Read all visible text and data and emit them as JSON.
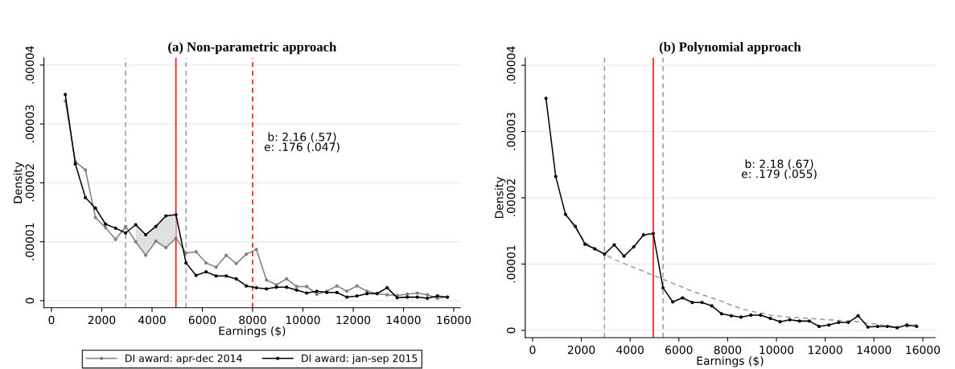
{
  "chart_data": [
    {
      "type": "line",
      "title": "(a) Non-parametric approach",
      "xlabel": "Earnings ($)",
      "ylabel": "Density",
      "xlim": [
        -300,
        16260
      ],
      "xticks": [
        0,
        2000,
        4000,
        6000,
        8000,
        10000,
        12000,
        14000,
        16000
      ],
      "ylim": [
        -1.2e-06,
        4.12e-05
      ],
      "yticks": [
        {
          "value": 0,
          "label": "0"
        },
        {
          "value": 1e-05,
          "label": ".00001"
        },
        {
          "value": 2e-05,
          "label": ".00002"
        },
        {
          "value": 3e-05,
          "label": ".00003"
        },
        {
          "value": 4e-05,
          "label": ".00004"
        }
      ],
      "grid": "y",
      "legend": "bottom",
      "marker": "circle",
      "series": [
        {
          "name": "DI award: apr-dec 2014",
          "color": "#808080",
          "x": [
            550,
            950,
            1350,
            1750,
            2150,
            2550,
            2950,
            3350,
            3750,
            4150,
            4550,
            4950,
            5350,
            5750,
            6150,
            6550,
            6950,
            7350,
            7750,
            8150,
            8550,
            8950,
            9350,
            9750,
            10150,
            10550,
            10950,
            11350,
            11750,
            12150,
            12550,
            12950,
            13350,
            13750,
            14150,
            14550,
            14950,
            15350,
            15750
          ],
          "values": [
            3.39e-05,
            2.36e-05,
            2.22e-05,
            1.41e-05,
            1.24e-05,
            1.04e-05,
            1.26e-05,
            1e-05,
            7.7e-06,
            1.01e-05,
            9e-06,
            1.06e-05,
            8.1e-06,
            8.3e-06,
            6.4e-06,
            5.7e-06,
            7.7e-06,
            6.3e-06,
            7.9e-06,
            8.7e-06,
            3.5e-06,
            2.7e-06,
            3.7e-06,
            2.4e-06,
            2.4e-06,
            1.1e-06,
            1.6e-06,
            2.5e-06,
            1.6e-06,
            2.5e-06,
            1.6e-06,
            1.2e-06,
            1e-06,
            9e-07,
            1.1e-06,
            1.3e-06,
            1e-06,
            4e-07,
            6e-07
          ]
        },
        {
          "name": "DI award: jan-sep 2015",
          "color": "#000000",
          "x": [
            550,
            950,
            1350,
            1750,
            2150,
            2550,
            2950,
            3350,
            3750,
            4150,
            4550,
            4950,
            5350,
            5750,
            6150,
            6550,
            6950,
            7350,
            7750,
            8150,
            8550,
            8950,
            9350,
            9750,
            10150,
            10550,
            10950,
            11350,
            11750,
            12150,
            12550,
            12950,
            13350,
            13750,
            14150,
            14550,
            14950,
            15350,
            15750
          ],
          "values": [
            3.5e-05,
            2.32e-05,
            1.75e-05,
            1.57e-05,
            1.3e-05,
            1.23e-05,
            1.15e-05,
            1.29e-05,
            1.12e-05,
            1.26e-05,
            1.44e-05,
            1.46e-05,
            6.4e-06,
            4.3e-06,
            4.9e-06,
            4.2e-06,
            4.2e-06,
            3.7e-06,
            2.5e-06,
            2.2e-06,
            2e-06,
            2.3e-06,
            2.3e-06,
            1.8e-06,
            1.3e-06,
            1.6e-06,
            1.4e-06,
            1.4e-06,
            6e-07,
            8e-07,
            1.2e-06,
            1.2e-06,
            2.2e-06,
            5e-07,
            6e-07,
            6e-07,
            4e-07,
            8e-07,
            6e-07
          ],
          "lower": [
            null,
            null,
            null,
            null,
            null,
            null,
            null,
            1e-05,
            7.7e-06,
            1.01e-05,
            9e-06,
            1.06e-05,
            null,
            null,
            null,
            null,
            null,
            null,
            null,
            null,
            null,
            null,
            null,
            null,
            null,
            null,
            null,
            null,
            null,
            null,
            null,
            null,
            null,
            null,
            null,
            null,
            null,
            null,
            null
          ],
          "upper": [
            null,
            null,
            null,
            null,
            null,
            null,
            null,
            1.29e-05,
            1.12e-05,
            1.26e-05,
            1.44e-05,
            1.46e-05,
            null,
            null,
            null,
            null,
            null,
            null,
            null,
            null,
            null,
            null,
            null,
            null,
            null,
            null,
            null,
            null,
            null,
            null,
            null,
            null,
            null,
            null,
            null,
            null,
            null,
            null,
            null
          ]
        }
      ],
      "ref_lines": [
        {
          "axis": "x",
          "value": 2950,
          "color": "#999999",
          "line_style": "dashed"
        },
        {
          "axis": "x",
          "value": 4950,
          "color": "#ff0000",
          "line_style": "solid"
        },
        {
          "axis": "x",
          "value": 5350,
          "color": "#999999",
          "line_style": "dashed"
        },
        {
          "axis": "x",
          "value": 8000,
          "color": "#ff0000",
          "line_style": "dashed"
        }
      ],
      "annotations": [
        "b: 2.16 (.57)\ne: .176 (.047)"
      ]
    },
    {
      "type": "line",
      "title": "(b) Polynomial approach",
      "xlabel": "Earnings ($)",
      "ylabel": "Density",
      "xlim": [
        -300,
        16500
      ],
      "xticks": [
        0,
        2000,
        4000,
        6000,
        8000,
        10000,
        12000,
        14000,
        16000
      ],
      "ylim": [
        -1.1e-06,
        4.11e-05
      ],
      "yticks": [
        {
          "value": 0,
          "label": "0"
        },
        {
          "value": 1e-05,
          "label": ".00001"
        },
        {
          "value": 2e-05,
          "label": ".00002"
        },
        {
          "value": 3e-05,
          "label": ".00003"
        },
        {
          "value": 4e-05,
          "label": ".00004"
        }
      ],
      "grid": "y",
      "marker": "circle",
      "series": [
        {
          "color": "#999999",
          "marker": "none",
          "line_style": "dashed",
          "x": [
            1350,
            1750,
            2150,
            2550,
            2950,
            3350,
            3750,
            4150,
            4550,
            4950,
            5350,
            5750,
            6150,
            6550,
            6950,
            7350,
            7750,
            8150,
            8550,
            8950,
            9350,
            9750,
            10150,
            10550,
            10950,
            11350,
            11750,
            12150,
            12550,
            12950,
            13350,
            13750,
            14150,
            14550,
            14950,
            15350,
            15750
          ],
          "values": [
            1.75e-05,
            1.55e-05,
            1.33e-05,
            1.24e-05,
            1.15e-05,
            1.07e-05,
            1.01e-05,
            9.5e-06,
            8.9e-06,
            8.3e-06,
            7.7e-06,
            7.1e-06,
            6.5e-06,
            5.9e-06,
            5.4e-06,
            4.9e-06,
            4.4e-06,
            3.8e-06,
            3.3e-06,
            2.9e-06,
            2.6e-06,
            2.3e-06,
            2.1e-06,
            2e-06,
            1.9e-06,
            1.8e-06,
            1.7e-06,
            1.6e-06,
            1.5e-06,
            1.4e-06,
            1.3e-06,
            1.1e-06,
            9e-07,
            7e-07,
            5e-07,
            5e-07,
            9e-07
          ]
        },
        {
          "color": "#000000",
          "x": [
            550,
            950,
            1350,
            1750,
            2150,
            2550,
            2950,
            3350,
            3750,
            4150,
            4550,
            4950,
            5350,
            5750,
            6150,
            6550,
            6950,
            7350,
            7750,
            8150,
            8550,
            8950,
            9350,
            9750,
            10150,
            10550,
            10950,
            11350,
            11750,
            12150,
            12550,
            12950,
            13350,
            13750,
            14150,
            14550,
            14950,
            15350,
            15750
          ],
          "values": [
            3.5e-05,
            2.32e-05,
            1.75e-05,
            1.57e-05,
            1.3e-05,
            1.23e-05,
            1.15e-05,
            1.29e-05,
            1.12e-05,
            1.26e-05,
            1.44e-05,
            1.46e-05,
            6.4e-06,
            4.3e-06,
            4.9e-06,
            4.2e-06,
            4.2e-06,
            3.7e-06,
            2.5e-06,
            2.2e-06,
            2e-06,
            2.3e-06,
            2.3e-06,
            1.8e-06,
            1.3e-06,
            1.6e-06,
            1.4e-06,
            1.4e-06,
            6e-07,
            8e-07,
            1.2e-06,
            1.2e-06,
            2.2e-06,
            5e-07,
            6e-07,
            6e-07,
            4e-07,
            8e-07,
            6e-07
          ]
        }
      ],
      "ref_lines": [
        {
          "axis": "x",
          "value": 2950,
          "color": "#999999",
          "line_style": "dashed"
        },
        {
          "axis": "x",
          "value": 4950,
          "color": "#ff0000",
          "line_style": "solid"
        },
        {
          "axis": "x",
          "value": 5350,
          "color": "#999999",
          "line_style": "dashed"
        }
      ],
      "annotations": [
        "b: 2.18 (.67)\ne: .179 (.055)"
      ]
    }
  ]
}
